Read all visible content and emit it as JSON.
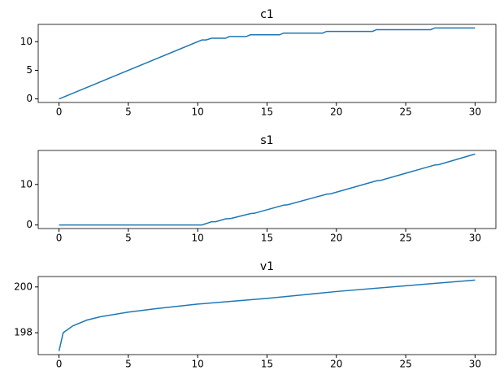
{
  "chart_data": [
    {
      "type": "line",
      "title": "c1",
      "color": "#1f77b4",
      "x": [
        0,
        10.3,
        10.6,
        11,
        12,
        12.3,
        13.5,
        13.8,
        15.9,
        16.2,
        19,
        19.3,
        22.6,
        22.9,
        26.8,
        27.1,
        30
      ],
      "values": [
        0,
        10.3,
        10.3,
        10.6,
        10.6,
        10.9,
        10.9,
        11.2,
        11.2,
        11.5,
        11.5,
        11.8,
        11.8,
        12.1,
        12.1,
        12.4,
        12.4
      ],
      "xlim": [
        -1.5,
        31.5
      ],
      "ylim": [
        -0.62,
        13.02
      ],
      "xticks": [
        0,
        5,
        10,
        15,
        20,
        25,
        30
      ],
      "yticks": [
        0,
        5,
        10
      ]
    },
    {
      "type": "line",
      "title": "s1",
      "color": "#1f77b4",
      "x": [
        0,
        10.3,
        11,
        11.3,
        12,
        12.4,
        13.8,
        14.1,
        16.2,
        16.5,
        19.3,
        19.6,
        22.9,
        23.2,
        27.1,
        27.4,
        30
      ],
      "values": [
        0,
        0,
        0.8,
        0.8,
        1.5,
        1.6,
        2.8,
        2.9,
        4.9,
        5,
        7.6,
        7.7,
        10.9,
        11,
        14.8,
        14.9,
        17.5
      ],
      "xlim": [
        -1.5,
        31.5
      ],
      "ylim": [
        -0.875,
        18.375
      ],
      "xticks": [
        0,
        5,
        10,
        15,
        20,
        25,
        30
      ],
      "yticks": [
        0,
        10
      ]
    },
    {
      "type": "line",
      "title": "v1",
      "color": "#1f77b4",
      "x": [
        0,
        0.3,
        1,
        2,
        3,
        5,
        7,
        10,
        15,
        20,
        25,
        30
      ],
      "values": [
        197.2,
        198.0,
        198.3,
        198.55,
        198.7,
        198.9,
        199.05,
        199.25,
        199.5,
        199.8,
        200.05,
        200.3
      ],
      "xlim": [
        -1.5,
        31.5
      ],
      "ylim": [
        197.045,
        200.455
      ],
      "xticks": [
        0,
        5,
        10,
        15,
        20,
        25,
        30
      ],
      "yticks": [
        198,
        200
      ]
    }
  ]
}
